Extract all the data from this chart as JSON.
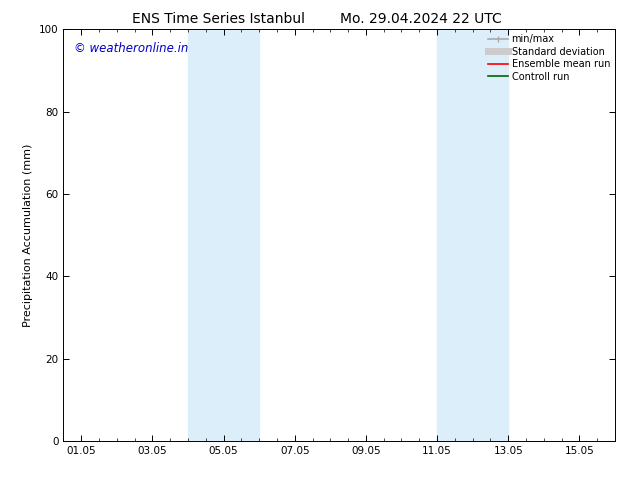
{
  "title_left": "ENS Time Series Istanbul",
  "title_right": "Mo. 29.04.2024 22 UTC",
  "ylabel": "Precipitation Accumulation (mm)",
  "ylim": [
    0,
    100
  ],
  "yticks": [
    0,
    20,
    40,
    60,
    80,
    100
  ],
  "xtick_labels": [
    "01.05",
    "03.05",
    "05.05",
    "07.05",
    "09.05",
    "11.05",
    "13.05",
    "15.05"
  ],
  "xtick_positions": [
    0,
    2,
    4,
    6,
    8,
    10,
    12,
    14
  ],
  "xlim": [
    -0.5,
    15.0
  ],
  "shaded_bands": [
    {
      "x_start": 3.0,
      "x_end": 5.0
    },
    {
      "x_start": 10.0,
      "x_end": 12.0
    }
  ],
  "shaded_color": "#dceef9",
  "watermark_text": "© weatheronline.in",
  "watermark_color": "#0000cc",
  "watermark_fontsize": 8.5,
  "legend_items": [
    {
      "label": "min/max",
      "color": "#aaaaaa",
      "lw": 1.2
    },
    {
      "label": "Standard deviation",
      "color": "#cccccc",
      "lw": 5
    },
    {
      "label": "Ensemble mean run",
      "color": "#ff0000",
      "lw": 1.2
    },
    {
      "label": "Controll run",
      "color": "#006600",
      "lw": 1.2
    }
  ],
  "bg_color": "#ffffff",
  "title_fontsize": 10,
  "axis_fontsize": 7.5,
  "ylabel_fontsize": 8,
  "legend_fontsize": 7
}
